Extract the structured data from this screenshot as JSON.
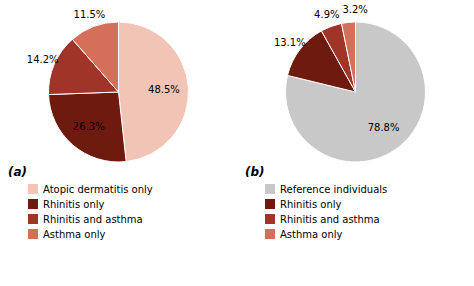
{
  "chart_data": [
    {
      "type": "pie",
      "title": "(a)",
      "categories": [
        "Atopic dermatitis only",
        "Rhinitis only",
        "Rhinitis and asthma",
        "Asthma only"
      ],
      "values": [
        48.5,
        26.3,
        14.2,
        11.5
      ],
      "value_labels": [
        "48.5%",
        "26.3%",
        "14.2%",
        "11.5%"
      ],
      "colors": [
        "#f2c4b5",
        "#6e1a0f",
        "#a03428",
        "#d4705a"
      ],
      "data_labels": true,
      "legend": "bottom"
    },
    {
      "type": "pie",
      "title": "(b)",
      "categories": [
        "Reference individuals",
        "Rhinitis only",
        "Rhinitis and asthma",
        "Asthma only"
      ],
      "values": [
        78.8,
        13.1,
        4.9,
        3.2
      ],
      "value_labels": [
        "78.8%",
        "13.1%",
        "4.9%",
        "3.2%"
      ],
      "colors": [
        "#c8c8c8",
        "#6e1a0f",
        "#a03428",
        "#d4705a"
      ],
      "data_labels": true,
      "legend": "bottom"
    }
  ]
}
